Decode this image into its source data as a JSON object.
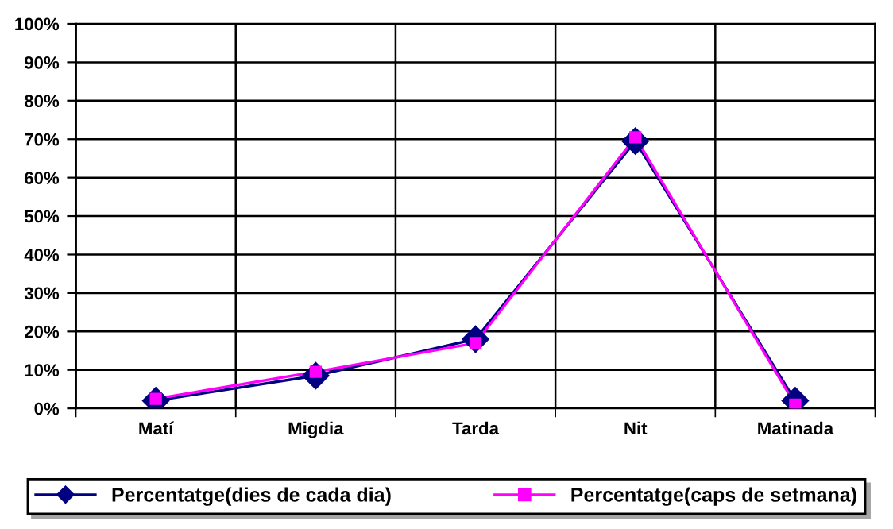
{
  "chart_data": {
    "type": "line",
    "categories": [
      "Matí",
      "Migdia",
      "Tarda",
      "Nit",
      "Matinada"
    ],
    "series": [
      {
        "name": "Percentatge(dies de cada dia)",
        "color": "#000080",
        "marker": "diamond",
        "values": [
          2,
          8.5,
          18,
          69.5,
          2
        ]
      },
      {
        "name": "Percentatge(caps de setmana)",
        "color": "#ff00ff",
        "marker": "square",
        "values": [
          2.5,
          9.5,
          17,
          70.5,
          1
        ]
      }
    ],
    "ylim": [
      0,
      100
    ],
    "yticks": [
      {
        "value": 0,
        "label": "0%"
      },
      {
        "value": 10,
        "label": "10%"
      },
      {
        "value": 20,
        "label": "20%"
      },
      {
        "value": 30,
        "label": "30%"
      },
      {
        "value": 40,
        "label": "40%"
      },
      {
        "value": 50,
        "label": "50%"
      },
      {
        "value": 60,
        "label": "60%"
      },
      {
        "value": 70,
        "label": "70%"
      },
      {
        "value": 80,
        "label": "80%"
      },
      {
        "value": 90,
        "label": "90%"
      },
      {
        "value": 100,
        "label": "100%"
      }
    ],
    "grid": true,
    "legend": "bottom",
    "line_style": "solid"
  }
}
